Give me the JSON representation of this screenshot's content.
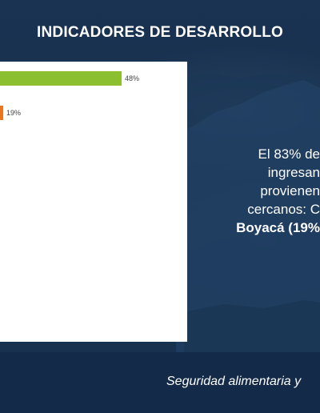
{
  "slide": {
    "title": "INDICADORES DE DESARROLLO",
    "footer": "Seguridad alimentaria y"
  },
  "chart_data": {
    "type": "bar",
    "orientation": "horizontal",
    "values": [
      48,
      19
    ],
    "data_labels": [
      "48%",
      "19%"
    ],
    "colors": [
      "#8cbf2f",
      "#e87722"
    ]
  },
  "body_text": {
    "line_1": "El 83% de",
    "line_2": "ingresan",
    "line_3": "provienen",
    "line_4": "cercanos: C",
    "line_5_bold": "Boyacá (19%"
  },
  "colors": {
    "background": "#17304e",
    "panel": "#ffffff",
    "green_bar": "#8cbf2f",
    "orange_bar": "#e87722"
  }
}
